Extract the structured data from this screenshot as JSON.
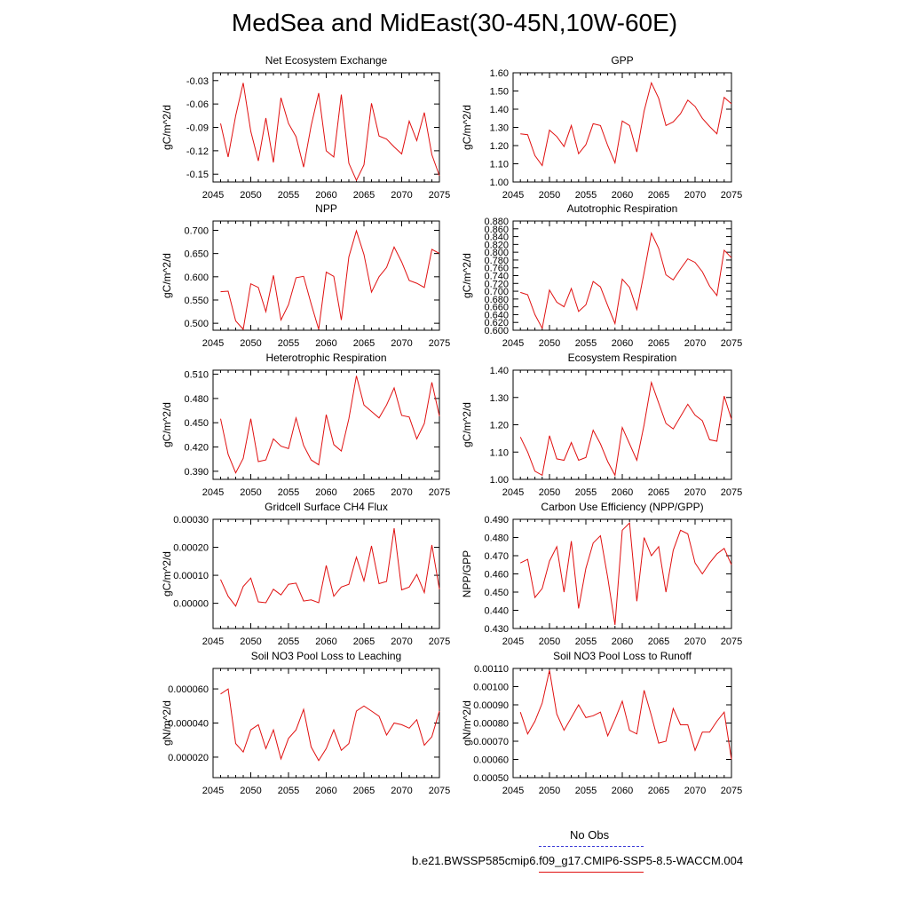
{
  "figure": {
    "title": "MedSea and MidEast(30-45N,10W-60E)",
    "series_color": "#e01010",
    "obs_color": "#3b3bd6"
  },
  "legend": {
    "obs_label": "No Obs",
    "run_label": "b.e21.BWSSP585cmip6.f09_g17.CMIP6-SSP5-8.5-WACCM.004"
  },
  "chart_data": [
    {
      "type": "line",
      "title": "Net Ecosystem Exchange",
      "ylabel": "gC/m^2/d",
      "xlim": [
        2045,
        2075
      ],
      "ylim": [
        -0.16,
        -0.02
      ],
      "xticks": [
        "2045",
        "2050",
        "2055",
        "2060",
        "2065",
        "2070",
        "2075"
      ],
      "yticks": [
        "-0.03",
        "-0.06",
        "-0.09",
        "-0.12",
        "-0.15"
      ],
      "yticks_values": [
        -0.03,
        -0.06,
        -0.09,
        -0.12,
        -0.15
      ],
      "x": [
        2046,
        2047,
        2048,
        2049,
        2050,
        2051,
        2052,
        2053,
        2054,
        2055,
        2056,
        2057,
        2058,
        2059,
        2060,
        2061,
        2062,
        2063,
        2064,
        2065,
        2066,
        2067,
        2068,
        2069,
        2070,
        2071,
        2072,
        2073,
        2074,
        2075
      ],
      "values": [
        -0.085,
        -0.128,
        -0.075,
        -0.033,
        -0.095,
        -0.133,
        -0.078,
        -0.135,
        -0.052,
        -0.085,
        -0.102,
        -0.141,
        -0.088,
        -0.046,
        -0.12,
        -0.128,
        -0.048,
        -0.136,
        -0.158,
        -0.138,
        -0.059,
        -0.101,
        -0.105,
        -0.115,
        -0.124,
        -0.082,
        -0.107,
        -0.071,
        -0.125,
        -0.152
      ]
    },
    {
      "type": "line",
      "title": "GPP",
      "ylabel": "gC/m^2/d",
      "xlim": [
        2045,
        2075
      ],
      "ylim": [
        1.0,
        1.6
      ],
      "xticks": [
        "2045",
        "2050",
        "2055",
        "2060",
        "2065",
        "2070",
        "2075"
      ],
      "yticks": [
        "1.60",
        "1.50",
        "1.40",
        "1.30",
        "1.20",
        "1.10",
        "1.00"
      ],
      "yticks_values": [
        1.6,
        1.5,
        1.4,
        1.3,
        1.2,
        1.1,
        1.0
      ],
      "x": [
        2046,
        2047,
        2048,
        2049,
        2050,
        2051,
        2052,
        2053,
        2054,
        2055,
        2056,
        2057,
        2058,
        2059,
        2060,
        2061,
        2062,
        2063,
        2064,
        2065,
        2066,
        2067,
        2068,
        2069,
        2070,
        2071,
        2072,
        2073,
        2074,
        2075
      ],
      "values": [
        1.265,
        1.26,
        1.145,
        1.09,
        1.285,
        1.25,
        1.195,
        1.31,
        1.155,
        1.205,
        1.32,
        1.31,
        1.2,
        1.105,
        1.335,
        1.31,
        1.165,
        1.39,
        1.545,
        1.46,
        1.31,
        1.33,
        1.375,
        1.45,
        1.415,
        1.35,
        1.305,
        1.265,
        1.465,
        1.43
      ]
    },
    {
      "type": "line",
      "title": "NPP",
      "ylabel": "gC/m^2/d",
      "xlim": [
        2045,
        2075
      ],
      "ylim": [
        0.485,
        0.72
      ],
      "xticks": [
        "2045",
        "2050",
        "2055",
        "2060",
        "2065",
        "2070",
        "2075"
      ],
      "yticks": [
        "0.700",
        "0.650",
        "0.600",
        "0.550",
        "0.500"
      ],
      "yticks_values": [
        0.7,
        0.65,
        0.6,
        0.55,
        0.5
      ],
      "x": [
        2046,
        2047,
        2048,
        2049,
        2050,
        2051,
        2052,
        2053,
        2054,
        2055,
        2056,
        2057,
        2058,
        2059,
        2060,
        2061,
        2062,
        2063,
        2064,
        2065,
        2066,
        2067,
        2068,
        2069,
        2070,
        2071,
        2072,
        2073,
        2074,
        2075
      ],
      "values": [
        0.568,
        0.569,
        0.505,
        0.487,
        0.585,
        0.577,
        0.525,
        0.603,
        0.507,
        0.54,
        0.598,
        0.601,
        0.542,
        0.487,
        0.61,
        0.601,
        0.507,
        0.643,
        0.699,
        0.648,
        0.567,
        0.6,
        0.62,
        0.664,
        0.632,
        0.592,
        0.586,
        0.577,
        0.659,
        0.65
      ]
    },
    {
      "type": "line",
      "title": "Autotrophic Respiration",
      "ylabel": "gC/m^2/d",
      "xlim": [
        2045,
        2075
      ],
      "ylim": [
        0.6,
        0.88
      ],
      "xticks": [
        "2045",
        "2050",
        "2055",
        "2060",
        "2065",
        "2070",
        "2075"
      ],
      "yticks": [
        "0.880",
        "0.860",
        "0.840",
        "0.820",
        "0.800",
        "0.780",
        "0.760",
        "0.740",
        "0.720",
        "0.700",
        "0.680",
        "0.660",
        "0.640",
        "0.620",
        "0.600"
      ],
      "yticks_values": [
        0.88,
        0.86,
        0.84,
        0.82,
        0.8,
        0.78,
        0.76,
        0.74,
        0.72,
        0.7,
        0.68,
        0.66,
        0.64,
        0.62,
        0.6
      ],
      "x": [
        2046,
        2047,
        2048,
        2049,
        2050,
        2051,
        2052,
        2053,
        2054,
        2055,
        2056,
        2057,
        2058,
        2059,
        2060,
        2061,
        2062,
        2063,
        2064,
        2065,
        2066,
        2067,
        2068,
        2069,
        2070,
        2071,
        2072,
        2073,
        2074,
        2075
      ],
      "values": [
        0.697,
        0.691,
        0.64,
        0.605,
        0.703,
        0.672,
        0.66,
        0.707,
        0.648,
        0.665,
        0.725,
        0.711,
        0.663,
        0.617,
        0.731,
        0.71,
        0.653,
        0.748,
        0.849,
        0.81,
        0.742,
        0.729,
        0.757,
        0.783,
        0.774,
        0.75,
        0.713,
        0.689,
        0.805,
        0.786
      ]
    },
    {
      "type": "line",
      "title": "Heterotrophic Respiration",
      "ylabel": "gC/m^2/d",
      "xlim": [
        2045,
        2075
      ],
      "ylim": [
        0.38,
        0.515
      ],
      "xticks": [
        "2045",
        "2050",
        "2055",
        "2060",
        "2065",
        "2070",
        "2075"
      ],
      "yticks": [
        "0.510",
        "0.480",
        "0.450",
        "0.420",
        "0.390"
      ],
      "yticks_values": [
        0.51,
        0.48,
        0.45,
        0.42,
        0.39
      ],
      "x": [
        2046,
        2047,
        2048,
        2049,
        2050,
        2051,
        2052,
        2053,
        2054,
        2055,
        2056,
        2057,
        2058,
        2059,
        2060,
        2061,
        2062,
        2063,
        2064,
        2065,
        2066,
        2067,
        2068,
        2069,
        2070,
        2071,
        2072,
        2073,
        2074,
        2075
      ],
      "values": [
        0.455,
        0.411,
        0.388,
        0.406,
        0.455,
        0.402,
        0.404,
        0.43,
        0.421,
        0.418,
        0.456,
        0.422,
        0.404,
        0.398,
        0.46,
        0.423,
        0.415,
        0.455,
        0.508,
        0.472,
        0.464,
        0.456,
        0.472,
        0.493,
        0.459,
        0.457,
        0.43,
        0.449,
        0.5,
        0.458
      ]
    },
    {
      "type": "line",
      "title": "Ecosystem Respiration",
      "ylabel": "gC/m^2/d",
      "xlim": [
        2045,
        2075
      ],
      "ylim": [
        1.0,
        1.4
      ],
      "xticks": [
        "2045",
        "2050",
        "2055",
        "2060",
        "2065",
        "2070",
        "2075"
      ],
      "yticks": [
        "1.40",
        "1.30",
        "1.20",
        "1.10",
        "1.00"
      ],
      "yticks_values": [
        1.4,
        1.3,
        1.2,
        1.1,
        1.0
      ],
      "x": [
        2046,
        2047,
        2048,
        2049,
        2050,
        2051,
        2052,
        2053,
        2054,
        2055,
        2056,
        2057,
        2058,
        2059,
        2060,
        2061,
        2062,
        2063,
        2064,
        2065,
        2066,
        2067,
        2068,
        2069,
        2070,
        2071,
        2072,
        2073,
        2074,
        2075
      ],
      "values": [
        1.155,
        1.1,
        1.03,
        1.015,
        1.16,
        1.075,
        1.07,
        1.135,
        1.07,
        1.08,
        1.18,
        1.13,
        1.065,
        1.015,
        1.19,
        1.13,
        1.07,
        1.2,
        1.355,
        1.28,
        1.205,
        1.185,
        1.23,
        1.275,
        1.235,
        1.215,
        1.145,
        1.14,
        1.305,
        1.22
      ]
    },
    {
      "type": "line",
      "title": "Gridcell Surface CH4 Flux",
      "ylabel": "gC/m^2/d",
      "xlim": [
        2045,
        2075
      ],
      "ylim": [
        -9e-05,
        0.0003
      ],
      "xticks": [
        "2045",
        "2050",
        "2055",
        "2060",
        "2065",
        "2070",
        "2075"
      ],
      "yticks": [
        "0.00030",
        "0.00020",
        "0.00010",
        "0.00000"
      ],
      "yticks_values": [
        0.0003,
        0.0002,
        0.0001,
        0.0
      ],
      "x": [
        2046,
        2047,
        2048,
        2049,
        2050,
        2051,
        2052,
        2053,
        2054,
        2055,
        2056,
        2057,
        2058,
        2059,
        2060,
        2061,
        2062,
        2063,
        2064,
        2065,
        2066,
        2067,
        2068,
        2069,
        2070,
        2071,
        2072,
        2073,
        2074,
        2075
      ],
      "values": [
        8.5e-05,
        2.5e-05,
        -1e-05,
        6e-05,
        9e-05,
        5e-06,
        2e-06,
        5e-05,
        3e-05,
        6.8e-05,
        7.2e-05,
        8e-06,
        1.2e-05,
        2e-06,
        0.000135,
        2.5e-05,
        5.8e-05,
        6.8e-05,
        0.000165,
        8e-05,
        0.000205,
        7e-05,
        7.8e-05,
        0.000268,
        4.8e-05,
        5.8e-05,
        0.000103,
        3.8e-05,
        0.000208,
        5e-05
      ]
    },
    {
      "type": "line",
      "title": "Carbon Use Efficiency (NPP/GPP)",
      "ylabel": "NPP/GPP",
      "xlim": [
        2045,
        2075
      ],
      "ylim": [
        0.43,
        0.49
      ],
      "xticks": [
        "2045",
        "2050",
        "2055",
        "2060",
        "2065",
        "2070",
        "2075"
      ],
      "yticks": [
        "0.490",
        "0.480",
        "0.470",
        "0.460",
        "0.450",
        "0.440",
        "0.430"
      ],
      "yticks_values": [
        0.49,
        0.48,
        0.47,
        0.46,
        0.45,
        0.44,
        0.43
      ],
      "x": [
        2046,
        2047,
        2048,
        2049,
        2050,
        2051,
        2052,
        2053,
        2054,
        2055,
        2056,
        2057,
        2058,
        2059,
        2060,
        2061,
        2062,
        2063,
        2064,
        2065,
        2066,
        2067,
        2068,
        2069,
        2070,
        2071,
        2072,
        2073,
        2074,
        2075
      ],
      "values": [
        0.466,
        0.468,
        0.447,
        0.452,
        0.467,
        0.475,
        0.45,
        0.478,
        0.441,
        0.463,
        0.477,
        0.481,
        0.458,
        0.432,
        0.484,
        0.488,
        0.445,
        0.48,
        0.47,
        0.475,
        0.45,
        0.473,
        0.484,
        0.482,
        0.466,
        0.46,
        0.466,
        0.471,
        0.474,
        0.465
      ]
    },
    {
      "type": "line",
      "title": "Soil NO3 Pool Loss to Leaching",
      "ylabel": "gN/m^2/d",
      "xlim": [
        2045,
        2075
      ],
      "ylim": [
        8e-06,
        7.2e-05
      ],
      "xticks": [
        "2045",
        "2050",
        "2055",
        "2060",
        "2065",
        "2070",
        "2075"
      ],
      "yticks": [
        "0.000060",
        "0.000040",
        "0.000020"
      ],
      "yticks_values": [
        6e-05,
        4e-05,
        2e-05
      ],
      "x": [
        2046,
        2047,
        2048,
        2049,
        2050,
        2051,
        2052,
        2053,
        2054,
        2055,
        2056,
        2057,
        2058,
        2059,
        2060,
        2061,
        2062,
        2063,
        2064,
        2065,
        2066,
        2067,
        2068,
        2069,
        2070,
        2071,
        2072,
        2073,
        2074,
        2075
      ],
      "values": [
        5.7e-05,
        6e-05,
        2.8e-05,
        2.3e-05,
        3.6e-05,
        3.9e-05,
        2.5e-05,
        3.6e-05,
        1.9e-05,
        3.1e-05,
        3.6e-05,
        4.8e-05,
        2.6e-05,
        1.8e-05,
        2.5e-05,
        3.6e-05,
        2.4e-05,
        2.8e-05,
        4.7e-05,
        5e-05,
        4.7e-05,
        4.4e-05,
        3.3e-05,
        4e-05,
        3.9e-05,
        3.7e-05,
        4.2e-05,
        2.7e-05,
        3.2e-05,
        4.7e-05
      ]
    },
    {
      "type": "line",
      "title": "Soil NO3 Pool Loss to Runoff",
      "ylabel": "gN/m^2/d",
      "xlim": [
        2045,
        2075
      ],
      "ylim": [
        0.0005,
        0.0011
      ],
      "xticks": [
        "2045",
        "2050",
        "2055",
        "2060",
        "2065",
        "2070",
        "2075"
      ],
      "yticks": [
        "0.00110",
        "0.00100",
        "0.00090",
        "0.00080",
        "0.00070",
        "0.00060",
        "0.00050"
      ],
      "yticks_values": [
        0.0011,
        0.001,
        0.0009,
        0.0008,
        0.0007,
        0.0006,
        0.0005
      ],
      "x": [
        2046,
        2047,
        2048,
        2049,
        2050,
        2051,
        2052,
        2053,
        2054,
        2055,
        2056,
        2057,
        2058,
        2059,
        2060,
        2061,
        2062,
        2063,
        2064,
        2065,
        2066,
        2067,
        2068,
        2069,
        2070,
        2071,
        2072,
        2073,
        2074,
        2075
      ],
      "values": [
        0.00086,
        0.00074,
        0.00081,
        0.00091,
        0.00109,
        0.00085,
        0.00076,
        0.00083,
        0.0009,
        0.00083,
        0.00084,
        0.00086,
        0.00073,
        0.00082,
        0.00092,
        0.00076,
        0.00074,
        0.00098,
        0.00084,
        0.00069,
        0.0007,
        0.00088,
        0.00079,
        0.00079,
        0.00065,
        0.00075,
        0.00075,
        0.00081,
        0.00086,
        0.0006
      ]
    }
  ]
}
